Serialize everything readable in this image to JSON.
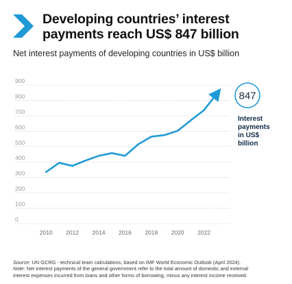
{
  "header": {
    "title_line1": "Developing countries’ interest",
    "title_line2": "payments reach US$ 847 billion",
    "subtitle": "Net interest payments of developing countries in US$ billion",
    "accent_color": "#1f9ad6",
    "chevron_icon": "chevron-right-icon"
  },
  "chart_data": {
    "type": "line",
    "title": "",
    "xlabel": "",
    "ylabel": "",
    "ylim": [
      0,
      900
    ],
    "xlim": [
      2009,
      2024
    ],
    "y_ticks": [
      0,
      100,
      200,
      300,
      400,
      500,
      600,
      700,
      800,
      900
    ],
    "x_ticks": [
      2010,
      2012,
      2014,
      2016,
      2018,
      2020,
      2022
    ],
    "grid": true,
    "series": [
      {
        "color": "#1f9ad6",
        "x": [
          2010,
          2011,
          2012,
          2013,
          2014,
          2015,
          2016,
          2017,
          2018,
          2019,
          2020,
          2021,
          2022,
          2023
        ],
        "y": [
          335,
          395,
          375,
          410,
          440,
          458,
          440,
          515,
          565,
          575,
          603,
          671,
          737,
          847
        ]
      }
    ],
    "annotation": {
      "value": "847",
      "label_lines": [
        "Interest",
        "payments",
        "in US$",
        "billion"
      ]
    }
  },
  "footnote": {
    "source_label": "Source:",
    "source_text": " UN GCRG - technical team calculations, based on IMF World Economic Outlook (April 2024).",
    "note_label": "Note:",
    "note_text_1": " Net interest payments of the general government refer to the total amount of domestic and external",
    "note_text_2": "interest expenses incurred from loans and other forms of borrowing, minus any interest income received."
  }
}
